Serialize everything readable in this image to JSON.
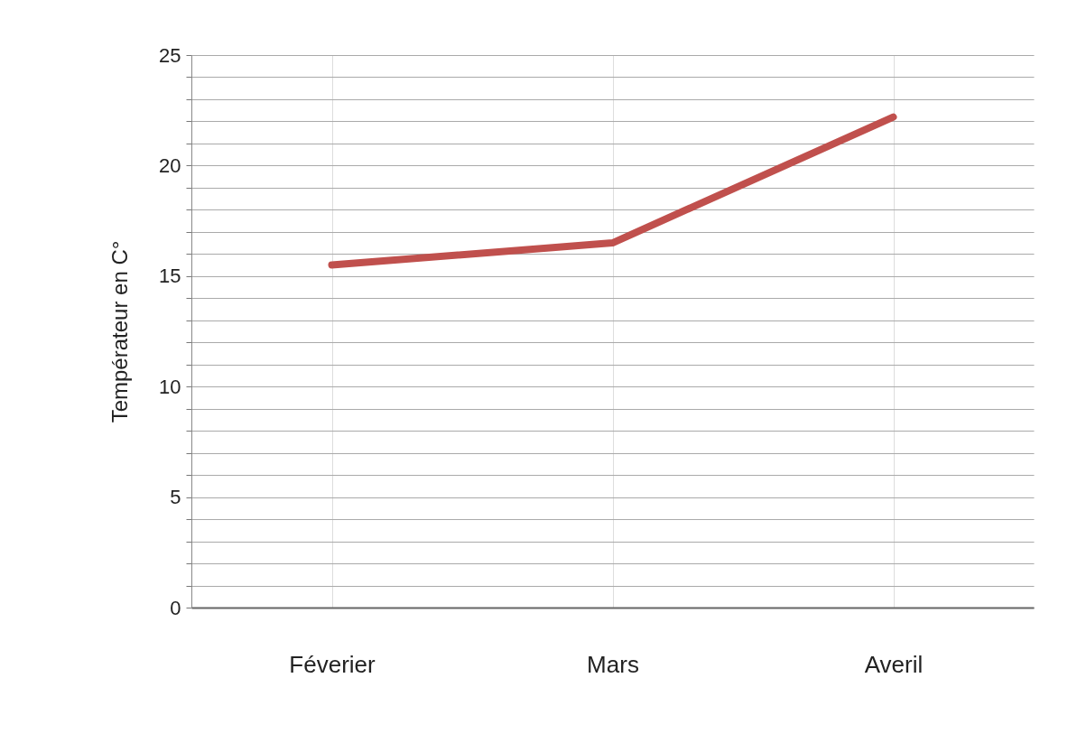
{
  "chart_data": {
    "type": "line",
    "ylabel": "Températeur en C°",
    "categories": [
      "Féverier",
      "Mars",
      "Averil"
    ],
    "series": [
      {
        "color": "#c0504d",
        "values": [
          15.5,
          16.5,
          22.2
        ]
      }
    ],
    "ylim": [
      0,
      25
    ],
    "yticks": [
      0,
      {
        "value": 1,
        "label": null
      },
      {
        "value": 2,
        "label": null
      },
      {
        "value": 3,
        "label": null
      },
      {
        "value": 4,
        "label": null
      },
      5,
      {
        "value": 6,
        "label": null
      },
      {
        "value": 7,
        "label": null
      },
      {
        "value": 8,
        "label": null
      },
      {
        "value": 9,
        "label": null
      },
      10,
      {
        "value": 11,
        "label": null
      },
      {
        "value": 12,
        "label": null
      },
      {
        "value": 13,
        "label": null
      },
      {
        "value": 14,
        "label": null
      },
      15,
      {
        "value": 16,
        "label": null
      },
      {
        "value": 17,
        "label": null
      },
      {
        "value": 18,
        "label": null
      },
      {
        "value": 19,
        "label": null
      },
      20,
      {
        "value": 21,
        "label": null
      },
      {
        "value": 22,
        "label": null
      },
      {
        "value": 23,
        "label": null
      },
      {
        "value": 24,
        "label": null
      },
      25
    ],
    "grid": true,
    "marker": "none",
    "line_style": "solid",
    "legend": false
  }
}
